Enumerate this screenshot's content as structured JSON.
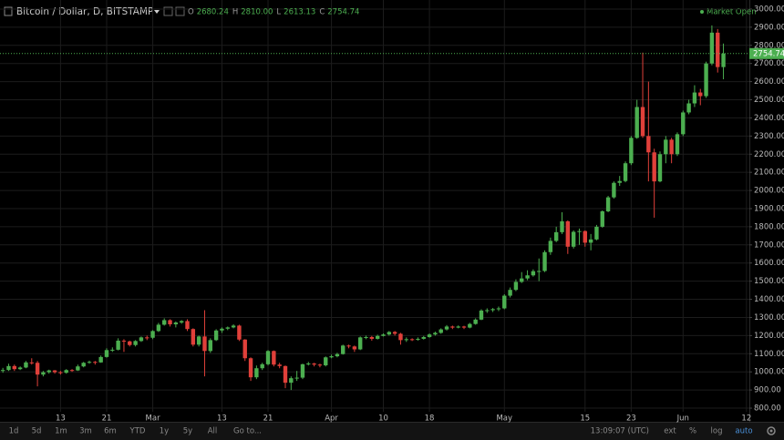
{
  "chart_data": {
    "type": "candlestick",
    "title": "Bitcoin / Dollar, D, BITSTAMP",
    "ohlc_legend": [
      {
        "key": "O",
        "value": "2680.24"
      },
      {
        "key": "H",
        "value": "2810.00"
      },
      {
        "key": "L",
        "value": "2613.13"
      },
      {
        "key": "C",
        "value": "2754.74"
      }
    ],
    "status": "Market Open",
    "categories": [
      null,
      null,
      null,
      null,
      null,
      null,
      null,
      null,
      null,
      null,
      "13",
      null,
      null,
      null,
      null,
      null,
      null,
      null,
      "21",
      null,
      null,
      null,
      null,
      null,
      null,
      null,
      "Mar",
      null,
      null,
      null,
      null,
      null,
      null,
      null,
      null,
      null,
      null,
      null,
      "13",
      null,
      null,
      null,
      null,
      null,
      null,
      null,
      "21",
      null,
      null,
      null,
      null,
      null,
      null,
      null,
      null,
      null,
      null,
      "Apr",
      null,
      null,
      null,
      null,
      null,
      null,
      null,
      null,
      "10",
      null,
      null,
      null,
      null,
      null,
      null,
      null,
      "18",
      null,
      null,
      null,
      null,
      null,
      null,
      null,
      null,
      null,
      null,
      null,
      null,
      "May",
      null,
      null,
      null,
      null,
      null,
      null,
      null,
      null,
      null,
      null,
      null,
      null,
      null,
      "15",
      null,
      null,
      null,
      null,
      null,
      null,
      null,
      "23",
      null,
      null,
      null,
      null,
      null,
      null,
      null,
      null,
      "Jun",
      null,
      null,
      null,
      null,
      null,
      null,
      null,
      null,
      null,
      null,
      "12"
    ],
    "open": [
      1005,
      1010,
      1032,
      1015,
      1024,
      1052,
      1050,
      985,
      998,
      1008,
      998,
      995,
      1010,
      1008,
      1030,
      1050,
      1055,
      1052,
      1082,
      1120,
      1122,
      1172,
      1168,
      1148,
      1170,
      1190,
      1188,
      1225,
      1260,
      1285,
      1262,
      1272,
      1280,
      1236,
      1150,
      1195,
      1115,
      1175,
      1228,
      1238,
      1245,
      1255,
      1178,
      1075,
      970,
      1020,
      1042,
      1115,
      1040,
      1032,
      940,
      965,
      968,
      1042,
      1046,
      1040,
      1036,
      1080,
      1086,
      1098,
      1145,
      1140,
      1124,
      1190,
      1192,
      1182,
      1198,
      1206,
      1220,
      1210,
      1175,
      1180,
      1178,
      1182,
      1192,
      1206,
      1215,
      1234,
      1250,
      1244,
      1250,
      1244,
      1264,
      1288,
      1338,
      1340,
      1346,
      1350,
      1420,
      1452,
      1496,
      1515,
      1532,
      1555,
      1556,
      1660,
      1722,
      1770,
      1830,
      1690,
      1772,
      1776,
      1712,
      1730,
      1800,
      1885,
      1962,
      2042,
      2052,
      2150,
      2290,
      2460,
      2300,
      2210,
      2050,
      2200,
      2280,
      2200,
      2310,
      2430,
      2480,
      2540,
      2520,
      2700,
      2870,
      2680.24,
      null,
      null,
      null,
      null
    ],
    "high": [
      1022,
      1045,
      1040,
      1030,
      1060,
      1075,
      1060,
      1005,
      1012,
      1010,
      1005,
      1015,
      1015,
      1040,
      1055,
      1062,
      1060,
      1090,
      1130,
      1135,
      1185,
      1180,
      1172,
      1175,
      1195,
      1200,
      1230,
      1270,
      1295,
      1290,
      1278,
      1285,
      1290,
      1240,
      1200,
      1340,
      1185,
      1235,
      1245,
      1250,
      1262,
      1260,
      1180,
      1080,
      1035,
      1050,
      1120,
      1118,
      1050,
      1035,
      975,
      1005,
      1045,
      1055,
      1050,
      1045,
      1085,
      1095,
      1105,
      1150,
      1150,
      1145,
      1195,
      1200,
      1198,
      1205,
      1212,
      1225,
      1225,
      1215,
      1190,
      1185,
      1190,
      1198,
      1212,
      1222,
      1240,
      1258,
      1255,
      1256,
      1254,
      1270,
      1295,
      1345,
      1350,
      1352,
      1360,
      1428,
      1465,
      1510,
      1550,
      1560,
      1565,
      1625,
      1670,
      1740,
      1800,
      1880,
      1835,
      1780,
      1790,
      1780,
      1760,
      1810,
      1890,
      1970,
      2050,
      2080,
      2160,
      2300,
      2500,
      2760,
      2600,
      2230,
      2215,
      2300,
      2290,
      2320,
      2440,
      2500,
      2580,
      2560,
      2710,
      2910,
      2890,
      2810,
      null,
      null,
      null,
      null
    ],
    "low": [
      995,
      1005,
      1005,
      1010,
      1020,
      1040,
      920,
      975,
      990,
      990,
      985,
      990,
      1000,
      1005,
      1025,
      1045,
      1040,
      1050,
      1078,
      1110,
      1118,
      1110,
      1140,
      1140,
      1165,
      1175,
      1180,
      1220,
      1255,
      1250,
      1245,
      1265,
      1225,
      1140,
      1140,
      975,
      1105,
      1170,
      1215,
      1230,
      1240,
      1170,
      1060,
      950,
      960,
      1010,
      1035,
      1030,
      1020,
      910,
      900,
      950,
      960,
      1035,
      1030,
      1025,
      1030,
      1075,
      1080,
      1095,
      1130,
      1110,
      1120,
      1180,
      1172,
      1178,
      1195,
      1200,
      1200,
      1150,
      1165,
      1170,
      1172,
      1178,
      1188,
      1200,
      1210,
      1228,
      1236,
      1240,
      1236,
      1240,
      1260,
      1285,
      1325,
      1330,
      1335,
      1345,
      1410,
      1445,
      1490,
      1505,
      1525,
      1500,
      1550,
      1645,
      1715,
      1760,
      1650,
      1680,
      1700,
      1690,
      1670,
      1725,
      1795,
      1880,
      1955,
      2025,
      2045,
      2140,
      2285,
      2290,
      2050,
      1850,
      2045,
      2150,
      2150,
      2190,
      2300,
      2420,
      2460,
      2470,
      2510,
      2690,
      2650,
      2613.13,
      null,
      null,
      null,
      null
    ],
    "close": [
      1010,
      1032,
      1015,
      1024,
      1052,
      1050,
      985,
      998,
      1008,
      998,
      995,
      1010,
      1008,
      1030,
      1050,
      1055,
      1052,
      1082,
      1120,
      1122,
      1172,
      1168,
      1148,
      1170,
      1190,
      1188,
      1225,
      1260,
      1285,
      1262,
      1272,
      1280,
      1236,
      1150,
      1195,
      1115,
      1175,
      1228,
      1238,
      1245,
      1255,
      1178,
      1075,
      970,
      1020,
      1042,
      1115,
      1040,
      1032,
      940,
      965,
      968,
      1042,
      1046,
      1040,
      1036,
      1080,
      1086,
      1098,
      1145,
      1140,
      1124,
      1190,
      1192,
      1182,
      1198,
      1206,
      1220,
      1210,
      1175,
      1180,
      1178,
      1182,
      1192,
      1206,
      1215,
      1234,
      1250,
      1244,
      1250,
      1244,
      1264,
      1288,
      1338,
      1340,
      1346,
      1350,
      1420,
      1452,
      1496,
      1515,
      1532,
      1555,
      1556,
      1660,
      1722,
      1770,
      1830,
      1690,
      1772,
      1776,
      1712,
      1730,
      1800,
      1885,
      1962,
      2042,
      2052,
      2150,
      2290,
      2460,
      2300,
      2210,
      2050,
      2200,
      2280,
      2200,
      2310,
      2430,
      2480,
      2540,
      2520,
      2700,
      2870,
      2680.24,
      2754.74,
      null,
      null,
      null,
      null
    ],
    "up_color": "#4caf50",
    "down_color": "#e0403a",
    "ylim": [
      780,
      3050
    ],
    "yticks": [
      {
        "value": 800,
        "label": "800.00"
      },
      {
        "value": 900,
        "label": "900.00"
      },
      {
        "value": 1000,
        "label": "1000.00"
      },
      {
        "value": 1100,
        "label": "1100.00"
      },
      {
        "value": 1200,
        "label": "1200.00"
      },
      {
        "value": 1300,
        "label": "1300.00"
      },
      {
        "value": 1400,
        "label": "1400.00"
      },
      {
        "value": 1500,
        "label": "1500.00"
      },
      {
        "value": 1600,
        "label": "1600.00"
      },
      {
        "value": 1700,
        "label": "1700.00"
      },
      {
        "value": 1800,
        "label": "1800.00"
      },
      {
        "value": 1900,
        "label": "1900.00"
      },
      {
        "value": 2000,
        "label": "2000.00"
      },
      {
        "value": 2100,
        "label": "2100.00"
      },
      {
        "value": 2200,
        "label": "2200.00"
      },
      {
        "value": 2300,
        "label": "2300.00"
      },
      {
        "value": 2400,
        "label": "2400.00"
      },
      {
        "value": 2500,
        "label": "2500.00"
      },
      {
        "value": 2600,
        "label": "2600.00"
      },
      {
        "value": 2700,
        "label": "2700.00"
      },
      {
        "value": 2800,
        "label": "2800.00"
      },
      {
        "value": 2900,
        "label": "2900.00"
      },
      {
        "value": 3000,
        "label": "3000.00"
      }
    ],
    "grid": true,
    "toolbar": {
      "ranges": [
        "1d",
        "5d",
        "1m",
        "3m",
        "6m",
        "YTD",
        "1y",
        "5y",
        "All"
      ],
      "goto": "Go to...",
      "time": "13:09:07 (UTC)",
      "options": [
        "ext",
        "%",
        "log",
        "auto"
      ]
    }
  }
}
